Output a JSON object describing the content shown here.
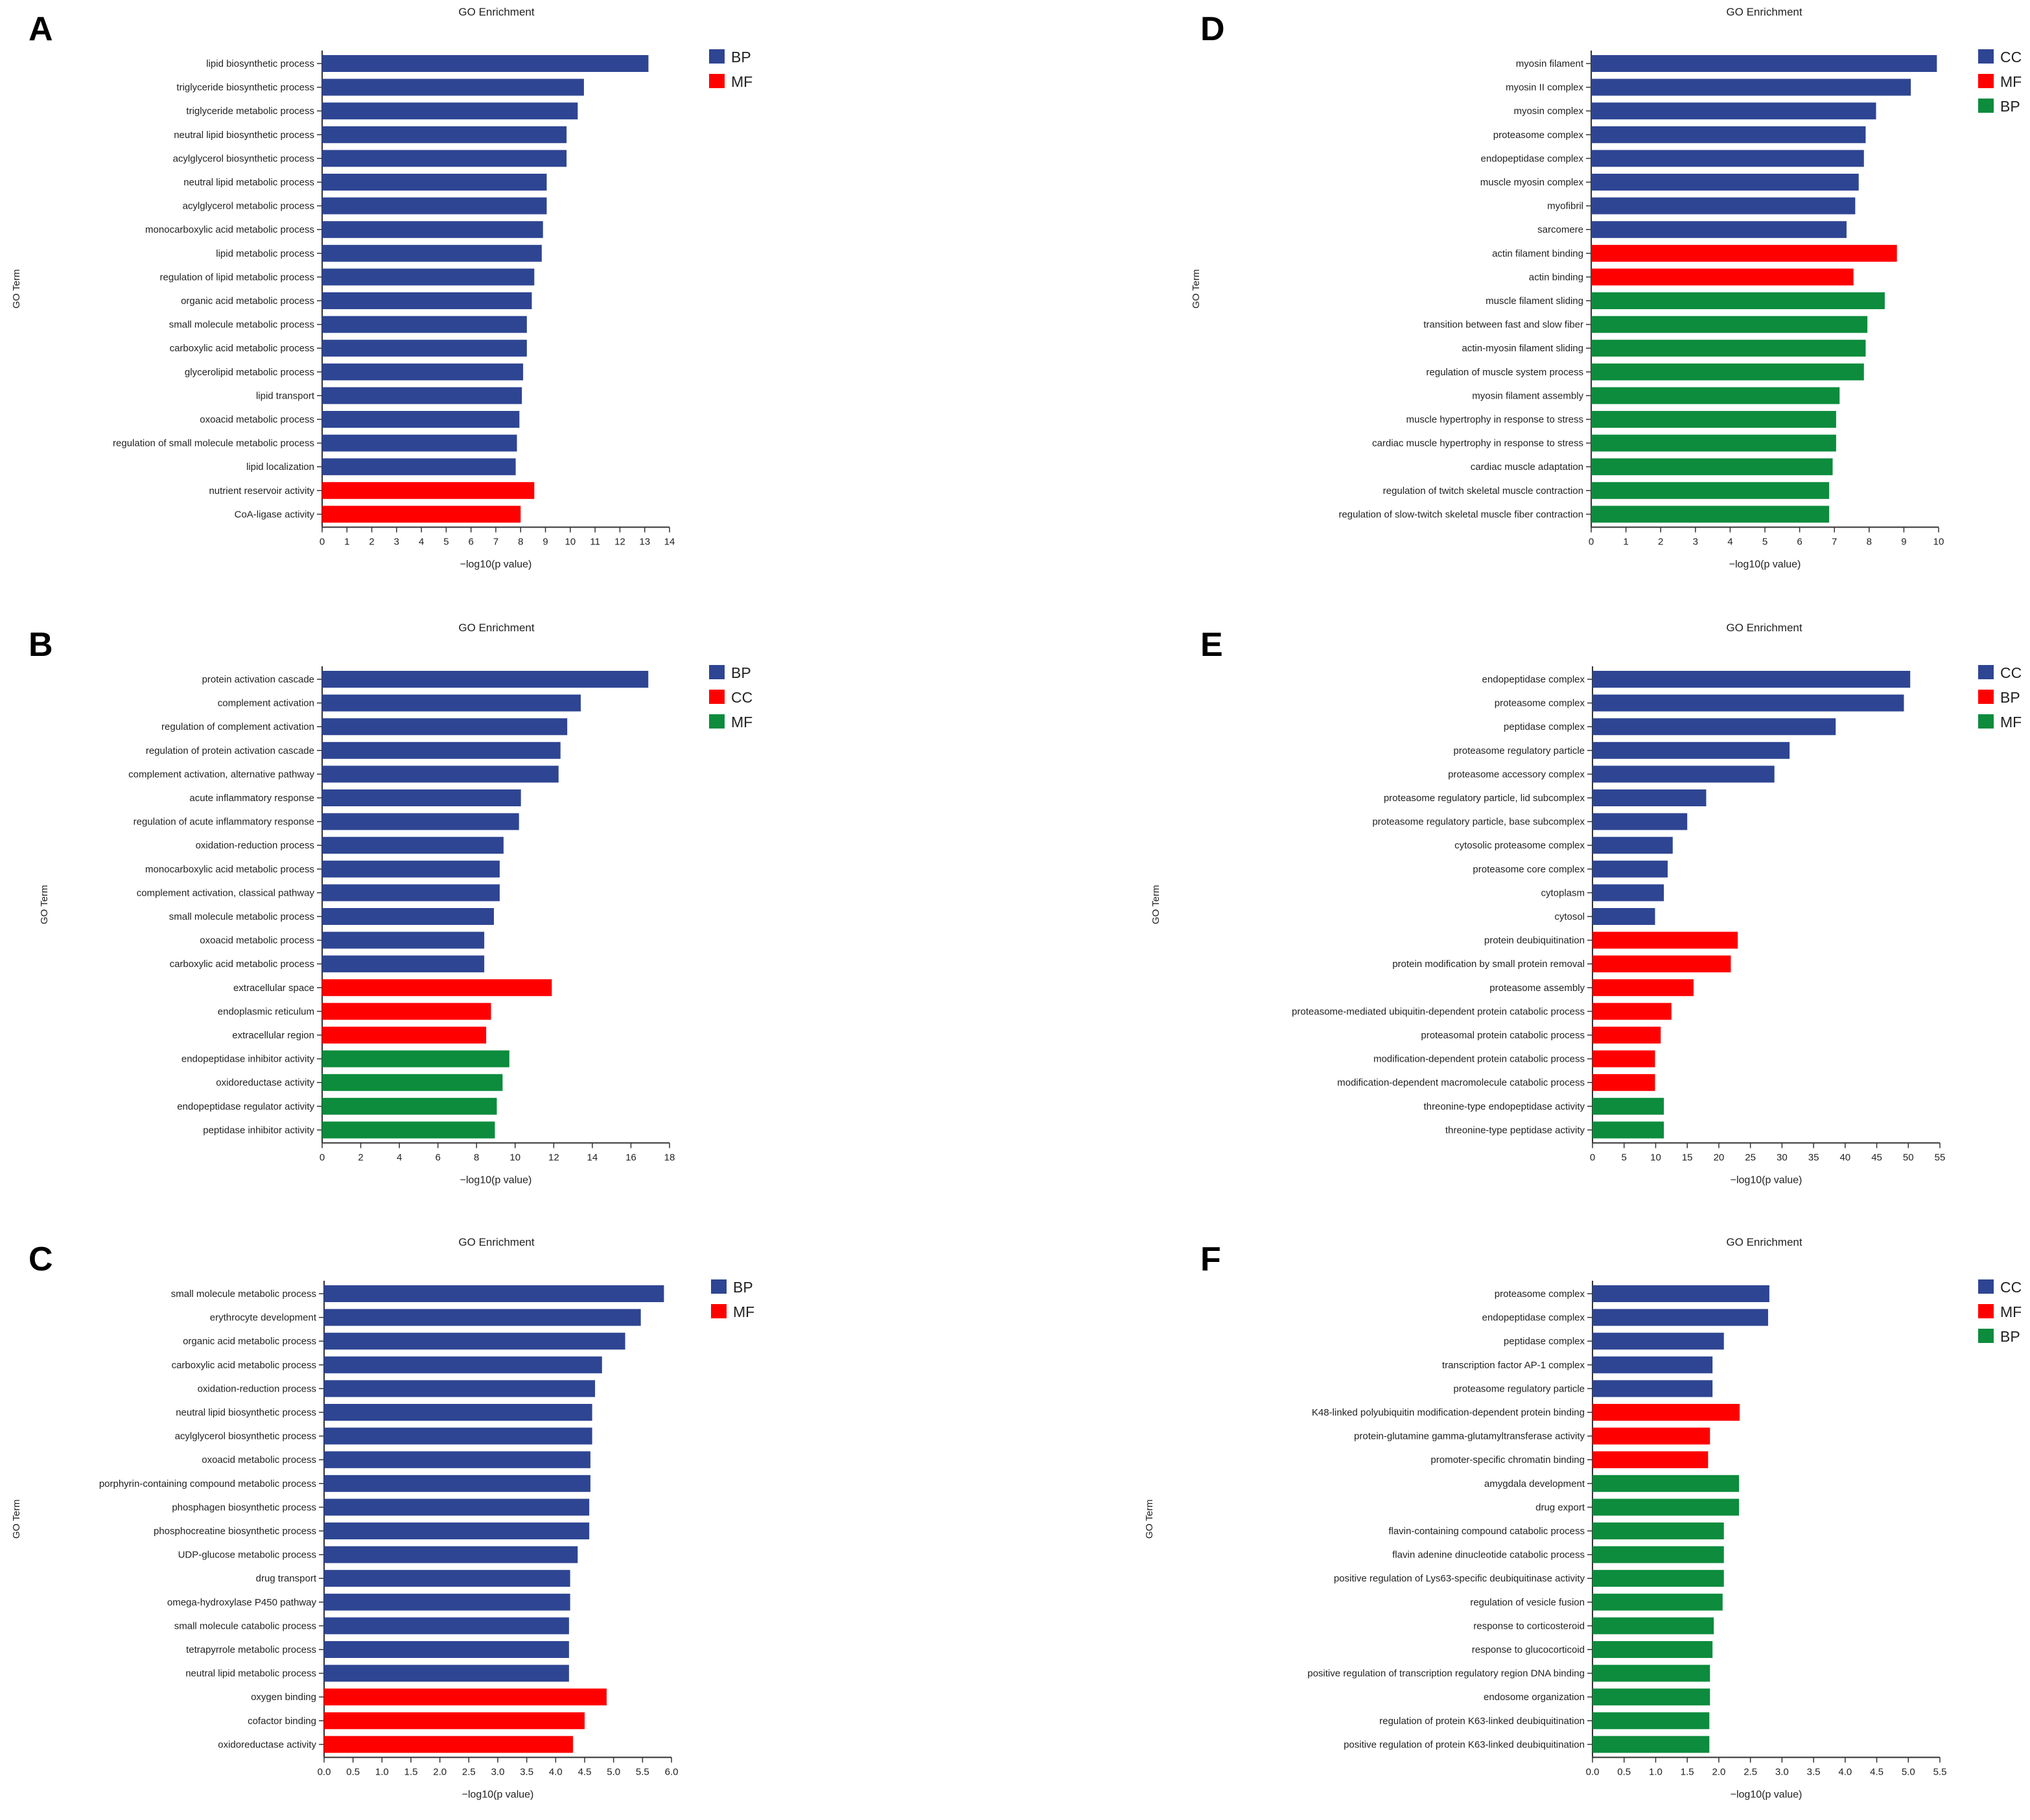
{
  "palette": {
    "blue": "#2e4593",
    "red": "#ff0000",
    "green": "#0c8c3c"
  },
  "chart_data": [
    {
      "panel": "A",
      "type": "bar",
      "orientation": "horizontal",
      "title": "GO Enrichment",
      "xlabel": "−log10(p value)",
      "ylabel": "GO Term",
      "xlim": [
        0,
        14
      ],
      "xticks": [
        "0",
        "1",
        "2",
        "3",
        "4",
        "5",
        "6",
        "7",
        "8",
        "9",
        "10",
        "11",
        "12",
        "13",
        "14"
      ],
      "legend": [
        {
          "label": "BP",
          "color": "blue"
        },
        {
          "label": "MF",
          "color": "red"
        }
      ],
      "bars": [
        {
          "term": "lipid biosynthetic process",
          "value": 13.15,
          "category": "BP"
        },
        {
          "term": "triglyceride biosynthetic process",
          "value": 10.55,
          "category": "BP"
        },
        {
          "term": "triglyceride metabolic process",
          "value": 10.3,
          "category": "BP"
        },
        {
          "term": "neutral lipid biosynthetic process",
          "value": 9.85,
          "category": "BP"
        },
        {
          "term": "acylglycerol biosynthetic process",
          "value": 9.85,
          "category": "BP"
        },
        {
          "term": "neutral lipid metabolic process",
          "value": 9.05,
          "category": "BP"
        },
        {
          "term": "acylglycerol metabolic process",
          "value": 9.05,
          "category": "BP"
        },
        {
          "term": "monocarboxylic acid metabolic process",
          "value": 8.9,
          "category": "BP"
        },
        {
          "term": "lipid metabolic process",
          "value": 8.85,
          "category": "BP"
        },
        {
          "term": "regulation of lipid metabolic process",
          "value": 8.55,
          "category": "BP"
        },
        {
          "term": "organic acid metabolic process",
          "value": 8.45,
          "category": "BP"
        },
        {
          "term": "small molecule metabolic process",
          "value": 8.25,
          "category": "BP"
        },
        {
          "term": "carboxylic acid metabolic process",
          "value": 8.25,
          "category": "BP"
        },
        {
          "term": "glycerolipid metabolic process",
          "value": 8.1,
          "category": "BP"
        },
        {
          "term": "lipid transport",
          "value": 8.05,
          "category": "BP"
        },
        {
          "term": "oxoacid metabolic process",
          "value": 7.95,
          "category": "BP"
        },
        {
          "term": "regulation of small molecule metabolic process",
          "value": 7.85,
          "category": "BP"
        },
        {
          "term": "lipid localization",
          "value": 7.8,
          "category": "BP"
        },
        {
          "term": "nutrient reservoir activity",
          "value": 8.55,
          "category": "MF"
        },
        {
          "term": "CoA-ligase activity",
          "value": 8.0,
          "category": "MF"
        }
      ]
    },
    {
      "panel": "B",
      "type": "bar",
      "orientation": "horizontal",
      "title": "GO Enrichment",
      "xlabel": "−log10(p value)",
      "ylabel": "GO Term",
      "xlim": [
        0,
        18
      ],
      "xticks": [
        "0",
        "2",
        "4",
        "6",
        "8",
        "10",
        "12",
        "14",
        "16",
        "18"
      ],
      "legend": [
        {
          "label": "BP",
          "color": "blue"
        },
        {
          "label": "CC",
          "color": "red"
        },
        {
          "label": "MF",
          "color": "green"
        }
      ],
      "bars": [
        {
          "term": "protein activation cascade",
          "value": 16.9,
          "category": "BP"
        },
        {
          "term": "complement activation",
          "value": 13.4,
          "category": "BP"
        },
        {
          "term": "regulation of complement activation",
          "value": 12.7,
          "category": "BP"
        },
        {
          "term": "regulation of protein activation cascade",
          "value": 12.35,
          "category": "BP"
        },
        {
          "term": "complement activation, alternative pathway",
          "value": 12.25,
          "category": "BP"
        },
        {
          "term": "acute inflammatory response",
          "value": 10.3,
          "category": "BP"
        },
        {
          "term": "regulation of acute inflammatory response",
          "value": 10.2,
          "category": "BP"
        },
        {
          "term": "oxidation-reduction process",
          "value": 9.4,
          "category": "BP"
        },
        {
          "term": "monocarboxylic acid metabolic process",
          "value": 9.2,
          "category": "BP"
        },
        {
          "term": "complement activation, classical pathway",
          "value": 9.2,
          "category": "BP"
        },
        {
          "term": "small molecule metabolic process",
          "value": 8.9,
          "category": "BP"
        },
        {
          "term": "oxoacid metabolic process",
          "value": 8.4,
          "category": "BP"
        },
        {
          "term": "carboxylic acid metabolic process",
          "value": 8.4,
          "category": "BP"
        },
        {
          "term": "extracellular space",
          "value": 11.9,
          "category": "CC"
        },
        {
          "term": "endoplasmic reticulum",
          "value": 8.75,
          "category": "CC"
        },
        {
          "term": "extracellular region",
          "value": 8.5,
          "category": "CC"
        },
        {
          "term": "endopeptidase inhibitor activity",
          "value": 9.7,
          "category": "MF"
        },
        {
          "term": "oxidoreductase activity",
          "value": 9.35,
          "category": "MF"
        },
        {
          "term": "endopeptidase regulator activity",
          "value": 9.05,
          "category": "MF"
        },
        {
          "term": "peptidase inhibitor activity",
          "value": 8.95,
          "category": "MF"
        }
      ]
    },
    {
      "panel": "C",
      "type": "bar",
      "orientation": "horizontal",
      "title": "GO Enrichment",
      "xlabel": "−log10(p value)",
      "ylabel": "GO Term",
      "xlim": [
        0,
        6
      ],
      "xticks": [
        "0.0",
        "0.5",
        "1.0",
        "1.5",
        "2.0",
        "2.5",
        "3.0",
        "3.5",
        "4.0",
        "4.5",
        "5.0",
        "5.5",
        "6.0"
      ],
      "legend": [
        {
          "label": "BP",
          "color": "blue"
        },
        {
          "label": "MF",
          "color": "red"
        }
      ],
      "bars": [
        {
          "term": "small molecule metabolic process",
          "value": 5.87,
          "category": "BP"
        },
        {
          "term": "erythrocyte development",
          "value": 5.47,
          "category": "BP"
        },
        {
          "term": "organic acid metabolic process",
          "value": 5.2,
          "category": "BP"
        },
        {
          "term": "carboxylic acid metabolic process",
          "value": 4.8,
          "category": "BP"
        },
        {
          "term": "oxidation-reduction process",
          "value": 4.68,
          "category": "BP"
        },
        {
          "term": "neutral lipid biosynthetic process",
          "value": 4.63,
          "category": "BP"
        },
        {
          "term": "acylglycerol biosynthetic process",
          "value": 4.63,
          "category": "BP"
        },
        {
          "term": "oxoacid metabolic process",
          "value": 4.6,
          "category": "BP"
        },
        {
          "term": "porphyrin-containing compound metabolic process",
          "value": 4.6,
          "category": "BP"
        },
        {
          "term": "phosphagen biosynthetic process",
          "value": 4.58,
          "category": "BP"
        },
        {
          "term": "phosphocreatine biosynthetic process",
          "value": 4.58,
          "category": "BP"
        },
        {
          "term": "UDP-glucose metabolic process",
          "value": 4.38,
          "category": "BP"
        },
        {
          "term": "drug transport",
          "value": 4.25,
          "category": "BP"
        },
        {
          "term": "omega-hydroxylase P450 pathway",
          "value": 4.25,
          "category": "BP"
        },
        {
          "term": "small molecule catabolic process",
          "value": 4.23,
          "category": "BP"
        },
        {
          "term": "tetrapyrrole metabolic process",
          "value": 4.23,
          "category": "BP"
        },
        {
          "term": "neutral lipid metabolic process",
          "value": 4.23,
          "category": "BP"
        },
        {
          "term": "oxygen binding",
          "value": 4.88,
          "category": "MF"
        },
        {
          "term": "cofactor binding",
          "value": 4.5,
          "category": "MF"
        },
        {
          "term": "oxidoreductase activity",
          "value": 4.3,
          "category": "MF"
        }
      ]
    },
    {
      "panel": "D",
      "type": "bar",
      "orientation": "horizontal",
      "title": "GO Enrichment",
      "xlabel": "−log10(p value)",
      "ylabel": "GO Term",
      "xlim": [
        0,
        10
      ],
      "xticks": [
        "0",
        "1",
        "2",
        "3",
        "4",
        "5",
        "6",
        "7",
        "8",
        "9",
        "10"
      ],
      "legend": [
        {
          "label": "CC",
          "color": "blue"
        },
        {
          "label": "MF",
          "color": "red"
        },
        {
          "label": "BP",
          "color": "green"
        }
      ],
      "bars": [
        {
          "term": "myosin filament",
          "value": 9.95,
          "category": "CC"
        },
        {
          "term": "myosin II complex",
          "value": 9.2,
          "category": "CC"
        },
        {
          "term": "myosin complex",
          "value": 8.2,
          "category": "CC"
        },
        {
          "term": "proteasome complex",
          "value": 7.9,
          "category": "CC"
        },
        {
          "term": "endopeptidase complex",
          "value": 7.85,
          "category": "CC"
        },
        {
          "term": "muscle myosin complex",
          "value": 7.7,
          "category": "CC"
        },
        {
          "term": "myofibril",
          "value": 7.6,
          "category": "CC"
        },
        {
          "term": "sarcomere",
          "value": 7.35,
          "category": "CC"
        },
        {
          "term": "actin filament binding",
          "value": 8.8,
          "category": "MF"
        },
        {
          "term": "actin binding",
          "value": 7.55,
          "category": "MF"
        },
        {
          "term": "muscle filament sliding",
          "value": 8.45,
          "category": "BP"
        },
        {
          "term": "transition between fast and slow fiber",
          "value": 7.95,
          "category": "BP"
        },
        {
          "term": "actin-myosin filament sliding",
          "value": 7.9,
          "category": "BP"
        },
        {
          "term": "regulation of muscle system process",
          "value": 7.85,
          "category": "BP"
        },
        {
          "term": "myosin filament assembly",
          "value": 7.15,
          "category": "BP"
        },
        {
          "term": "muscle hypertrophy in response to stress",
          "value": 7.05,
          "category": "BP"
        },
        {
          "term": "cardiac muscle hypertrophy in response to stress",
          "value": 7.05,
          "category": "BP"
        },
        {
          "term": "cardiac muscle adaptation",
          "value": 6.95,
          "category": "BP"
        },
        {
          "term": "regulation of twitch skeletal muscle contraction",
          "value": 6.85,
          "category": "BP"
        },
        {
          "term": "regulation of slow-twitch skeletal muscle fiber contraction",
          "value": 6.85,
          "category": "BP"
        }
      ]
    },
    {
      "panel": "E",
      "type": "bar",
      "orientation": "horizontal",
      "title": "GO Enrichment",
      "xlabel": "−log10(p value)",
      "ylabel": "GO Term",
      "xlim": [
        0,
        55
      ],
      "xticks": [
        "0",
        "5",
        "10",
        "15",
        "20",
        "25",
        "30",
        "35",
        "40",
        "45",
        "50",
        "55"
      ],
      "legend": [
        {
          "label": "CC",
          "color": "blue"
        },
        {
          "label": "BP",
          "color": "red"
        },
        {
          "label": "MF",
          "color": "green"
        }
      ],
      "bars": [
        {
          "term": "endopeptidase complex",
          "value": 50.3,
          "category": "CC"
        },
        {
          "term": "proteasome complex",
          "value": 49.3,
          "category": "CC"
        },
        {
          "term": "peptidase complex",
          "value": 38.5,
          "category": "CC"
        },
        {
          "term": "proteasome regulatory particle",
          "value": 31.2,
          "category": "CC"
        },
        {
          "term": "proteasome accessory complex",
          "value": 28.8,
          "category": "CC"
        },
        {
          "term": "proteasome regulatory particle, lid subcomplex",
          "value": 18.0,
          "category": "CC"
        },
        {
          "term": "proteasome regulatory particle, base subcomplex",
          "value": 15.0,
          "category": "CC"
        },
        {
          "term": "cytosolic proteasome complex",
          "value": 12.7,
          "category": "CC"
        },
        {
          "term": "proteasome core complex",
          "value": 11.9,
          "category": "CC"
        },
        {
          "term": "cytoplasm",
          "value": 11.3,
          "category": "CC"
        },
        {
          "term": "cytosol",
          "value": 9.9,
          "category": "CC"
        },
        {
          "term": "protein deubiquitination",
          "value": 23.0,
          "category": "BP"
        },
        {
          "term": "protein modification by small protein removal",
          "value": 21.9,
          "category": "BP"
        },
        {
          "term": "proteasome assembly",
          "value": 16.0,
          "category": "BP"
        },
        {
          "term": "proteasome-mediated ubiquitin-dependent protein catabolic process",
          "value": 12.5,
          "category": "BP"
        },
        {
          "term": "proteasomal protein catabolic process",
          "value": 10.8,
          "category": "BP"
        },
        {
          "term": "modification-dependent protein catabolic process",
          "value": 9.9,
          "category": "BP"
        },
        {
          "term": "modification-dependent macromolecule catabolic process",
          "value": 9.9,
          "category": "BP"
        },
        {
          "term": "threonine-type endopeptidase activity",
          "value": 11.3,
          "category": "MF"
        },
        {
          "term": "threonine-type peptidase activity",
          "value": 11.3,
          "category": "MF"
        }
      ]
    },
    {
      "panel": "F",
      "type": "bar",
      "orientation": "horizontal",
      "title": "GO Enrichment",
      "xlabel": "−log10(p value)",
      "ylabel": "GO Term",
      "xlim": [
        0,
        5.5
      ],
      "xticks": [
        "0.0",
        "0.5",
        "1.0",
        "1.5",
        "2.0",
        "2.5",
        "3.0",
        "3.5",
        "4.0",
        "4.5",
        "5.0",
        "5.5"
      ],
      "legend": [
        {
          "label": "CC",
          "color": "blue"
        },
        {
          "label": "MF",
          "color": "red"
        },
        {
          "label": "BP",
          "color": "green"
        }
      ],
      "bars": [
        {
          "term": "proteasome complex",
          "value": 2.8,
          "category": "CC"
        },
        {
          "term": "endopeptidase complex",
          "value": 2.78,
          "category": "CC"
        },
        {
          "term": "peptidase complex",
          "value": 2.08,
          "category": "CC"
        },
        {
          "term": "transcription factor AP-1 complex",
          "value": 1.9,
          "category": "CC"
        },
        {
          "term": "proteasome regulatory particle",
          "value": 1.9,
          "category": "CC"
        },
        {
          "term": "K48-linked polyubiquitin modification-dependent protein binding",
          "value": 2.33,
          "category": "MF"
        },
        {
          "term": "protein-glutamine gamma-glutamyltransferase activity",
          "value": 1.86,
          "category": "MF"
        },
        {
          "term": "promoter-specific chromatin binding",
          "value": 1.83,
          "category": "MF"
        },
        {
          "term": "amygdala development",
          "value": 2.32,
          "category": "BP"
        },
        {
          "term": "drug export",
          "value": 2.32,
          "category": "BP"
        },
        {
          "term": "flavin-containing compound catabolic process",
          "value": 2.08,
          "category": "BP"
        },
        {
          "term": "flavin adenine dinucleotide catabolic process",
          "value": 2.08,
          "category": "BP"
        },
        {
          "term": "positive regulation of Lys63-specific deubiquitinase activity",
          "value": 2.08,
          "category": "BP"
        },
        {
          "term": "regulation of vesicle fusion",
          "value": 2.06,
          "category": "BP"
        },
        {
          "term": "response to corticosteroid",
          "value": 1.92,
          "category": "BP"
        },
        {
          "term": "response to glucocorticoid",
          "value": 1.9,
          "category": "BP"
        },
        {
          "term": "positive regulation of transcription regulatory region DNA binding",
          "value": 1.86,
          "category": "BP"
        },
        {
          "term": "endosome organization",
          "value": 1.86,
          "category": "BP"
        },
        {
          "term": "regulation of protein K63-linked deubiquitination",
          "value": 1.85,
          "category": "BP"
        },
        {
          "term": "positive regulation of protein K63-linked deubiquitination",
          "value": 1.85,
          "category": "BP"
        }
      ]
    }
  ]
}
